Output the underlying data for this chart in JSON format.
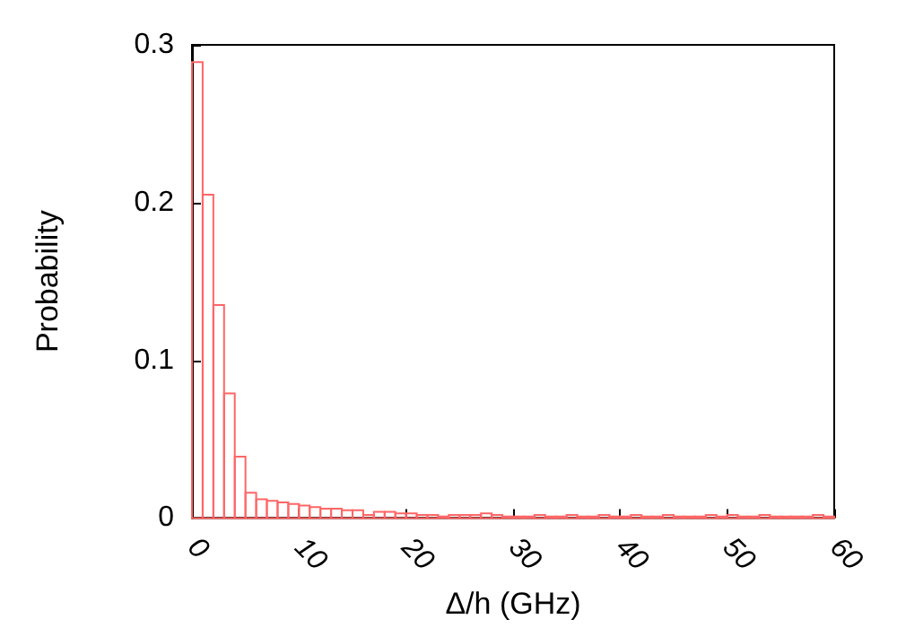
{
  "chart_data": {
    "type": "histogram",
    "xlabel": "Δ/h (GHz)",
    "ylabel": "Probability",
    "color": "#ff6666",
    "bins": [
      0,
      1,
      2,
      3,
      4,
      5,
      6,
      7,
      8,
      9,
      10,
      11,
      12,
      13,
      14,
      15,
      16,
      17,
      18,
      19,
      20,
      21,
      22,
      23,
      24,
      25,
      26,
      27,
      28,
      29,
      30,
      31,
      32,
      33,
      34,
      35,
      36,
      37,
      38,
      39,
      40,
      41,
      42,
      43,
      44,
      45,
      46,
      47,
      48,
      49,
      50,
      51,
      52,
      53,
      54,
      55,
      56,
      57,
      58,
      59,
      60
    ],
    "values": [
      0.289,
      0.205,
      0.135,
      0.079,
      0.039,
      0.016,
      0.012,
      0.011,
      0.01,
      0.009,
      0.008,
      0.007,
      0.006,
      0.006,
      0.005,
      0.005,
      0.002,
      0.004,
      0.004,
      0.003,
      0.003,
      0.002,
      0.002,
      0.001,
      0.002,
      0.002,
      0.002,
      0.003,
      0.002,
      0.001,
      0.001,
      0.001,
      0.002,
      0.001,
      0.001,
      0.002,
      0.001,
      0.001,
      0.002,
      0.001,
      0.001,
      0.002,
      0.001,
      0.001,
      0.002,
      0.001,
      0.001,
      0.001,
      0.002,
      0.001,
      0.002,
      0.001,
      0.001,
      0.002,
      0.001,
      0.001,
      0.001,
      0.001,
      0.002,
      0.001
    ],
    "xlim": [
      0,
      60
    ],
    "xticks": [
      0,
      10,
      20,
      30,
      40,
      50,
      60
    ],
    "ylim": [
      0,
      0.3
    ],
    "yticks": [
      0,
      0.1,
      0.2,
      0.3
    ]
  }
}
